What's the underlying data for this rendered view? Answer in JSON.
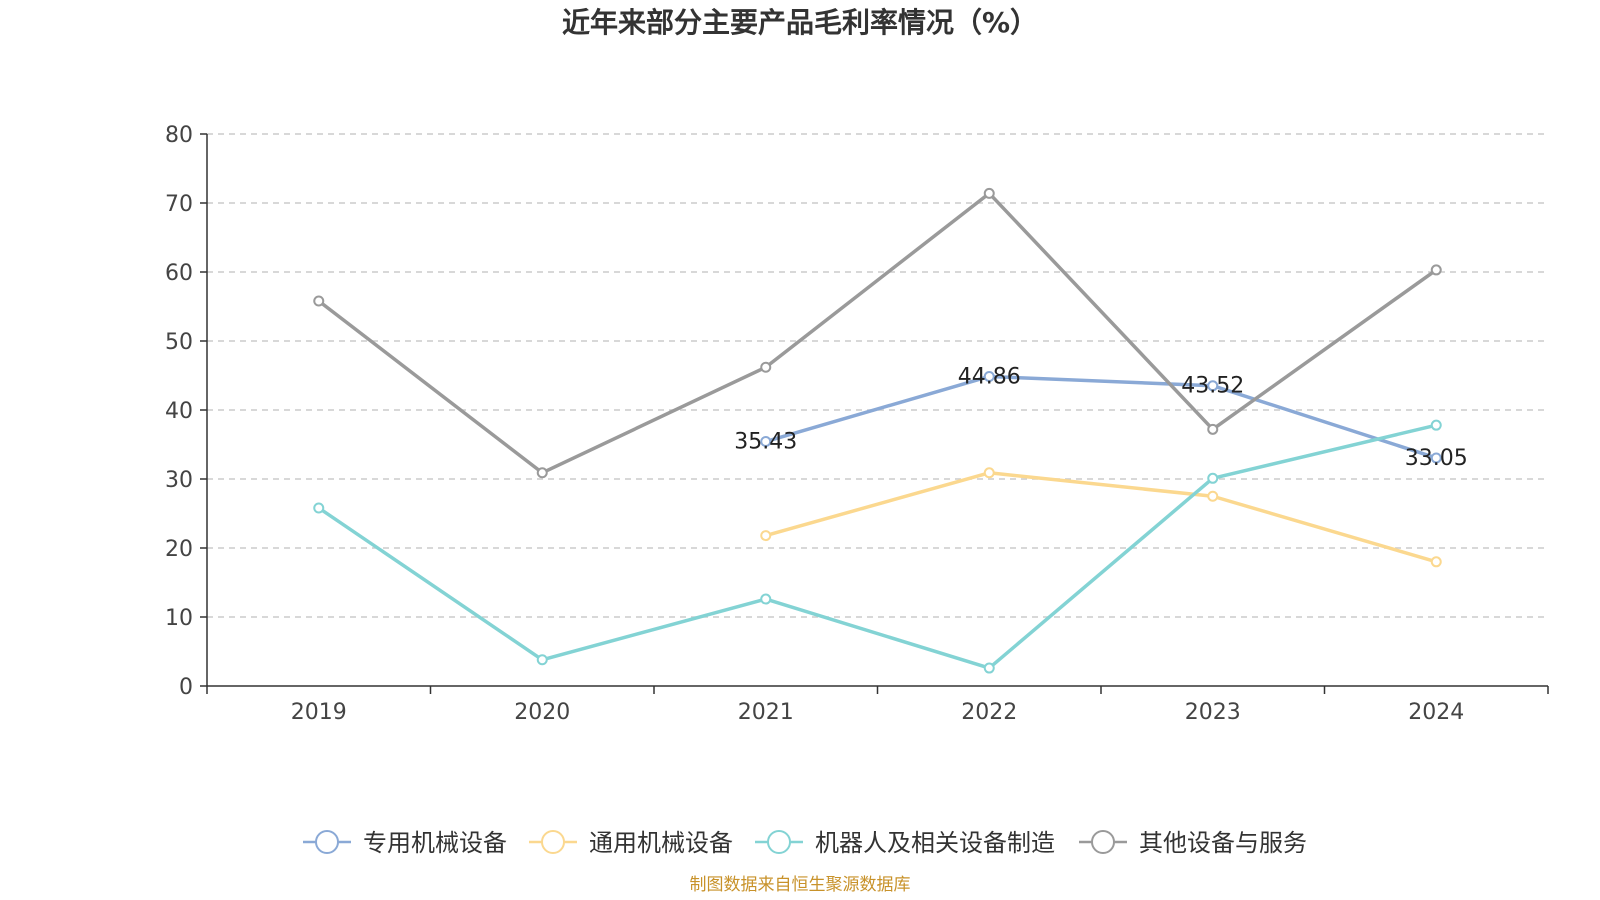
{
  "chart_data": {
    "type": "line",
    "title": "近年来部分主要产品毛利率情况（%）",
    "categories": [
      "2019",
      "2020",
      "2021",
      "2022",
      "2023",
      "2024"
    ],
    "ylim": [
      0,
      80
    ],
    "yticks": [
      0,
      10,
      20,
      30,
      40,
      50,
      60,
      70,
      80
    ],
    "grid": true,
    "legend_position": "bottom",
    "series": [
      {
        "name": "专用机械设备",
        "color": "#8aa9d6",
        "values": [
          null,
          null,
          35.43,
          44.86,
          43.52,
          33.05
        ],
        "labels": [
          null,
          null,
          "35.43",
          "44.86",
          "43.52",
          "33.05"
        ]
      },
      {
        "name": "通用机械设备",
        "color": "#fbd88f",
        "values": [
          null,
          null,
          21.8,
          30.9,
          27.5,
          18.0
        ],
        "labels": [
          null,
          null,
          null,
          null,
          null,
          null
        ]
      },
      {
        "name": "机器人及相关设备制造",
        "color": "#83d3d4",
        "values": [
          25.8,
          3.8,
          12.6,
          2.6,
          30.1,
          37.8
        ],
        "labels": [
          null,
          null,
          null,
          null,
          null,
          null
        ]
      },
      {
        "name": "其他设备与服务",
        "color": "#9a9a9a",
        "values": [
          55.8,
          30.9,
          46.2,
          71.4,
          37.2,
          60.3
        ],
        "labels": [
          null,
          null,
          null,
          null,
          null,
          null
        ]
      }
    ]
  },
  "source": "制图数据来自恒生聚源数据库"
}
